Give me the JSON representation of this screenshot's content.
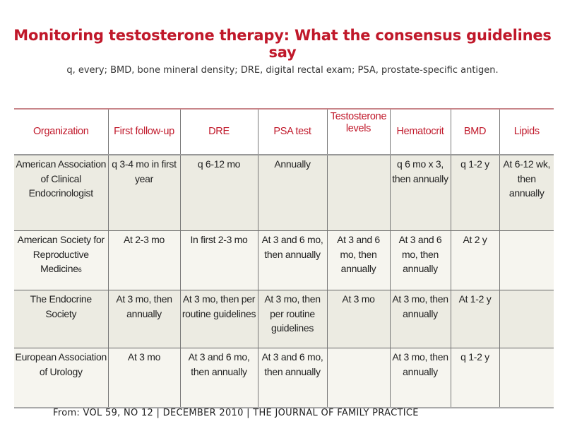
{
  "title": "Monitoring testosterone therapy: What the consensus guidelines say",
  "subtitle": "q, every; BMD, bone mineral density;  DRE, digital rectal exam; PSA, prostate-specific  antigen.",
  "table": {
    "headers": [
      "Organization",
      "First follow-up",
      "DRE",
      "PSA test",
      "Testosterone levels",
      "Hematocrit",
      "BMD",
      "Lipids"
    ],
    "rows": [
      [
        "American Association of Clinical Endocrinologist",
        "q 3-4 mo in first year",
        "q 6-12 mo",
        "Annually",
        "",
        "q 6 mo x 3, then annually",
        "q 1-2 y",
        "At 6-12 wk, then annually"
      ],
      [
        "American Society for Reproductive Medicine",
        "At 2-3 mo",
        "In first 2-3 mo",
        "At 3 and 6 mo, then annually",
        "At 3 and 6 mo, then annually",
        "At 3 and 6 mo, then annually",
        "At 2 y",
        ""
      ],
      [
        "The Endocrine Society",
        "At 3 mo, then annually",
        "At 3 mo, then per routine guidelines",
        "At 3 mo, then per routine guidelines",
        "At 3 mo",
        "At 3 mo, then annually",
        "At 1-2 y",
        ""
      ],
      [
        "European Association of Urology",
        "At 3 mo",
        "At 3 and 6 mo, then annually",
        "At 3 and 6 mo, then annually",
        "",
        "At 3 mo, then annually",
        "q 1-2 y",
        ""
      ]
    ],
    "footnote_marker": "6"
  },
  "footer": "From: VOL 59, NO 12  |  DECEMBER 2010  |  THE JOURNAL OF FAMILY PRACTICE",
  "colors": {
    "title": "#c0182a",
    "header_text": "#c0182a",
    "row_dark": "#ecebe2",
    "row_light": "#f6f5ef"
  }
}
